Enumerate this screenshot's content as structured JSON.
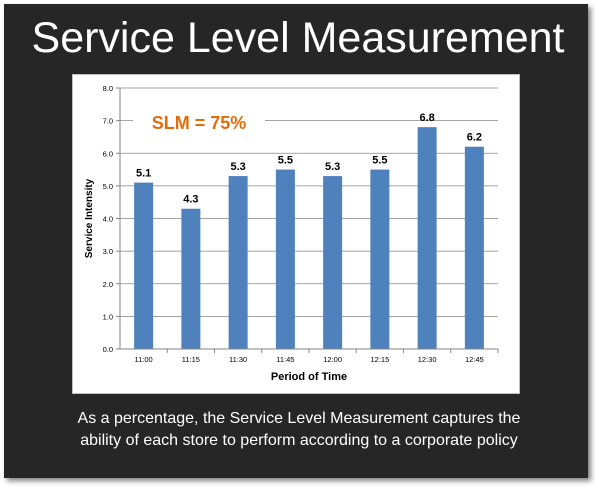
{
  "slide": {
    "title": "Service Level Measurement",
    "caption_line1": "As a percentage, the Service Level Measurement captures the",
    "caption_line2": "ability of each store to perform according to a corporate policy"
  },
  "chart_data": {
    "type": "bar",
    "categories": [
      "11:00",
      "11:15",
      "11:30",
      "11:45",
      "12:00",
      "12:15",
      "12:30",
      "12:45"
    ],
    "values": [
      5.1,
      4.3,
      5.3,
      5.5,
      5.3,
      5.5,
      6.8,
      6.2
    ],
    "data_labels": [
      "5.1",
      "4.3",
      "5.3",
      "5.5",
      "5.3",
      "5.5",
      "6.8",
      "6.2"
    ],
    "title": "",
    "xlabel": "Period of Time",
    "ylabel": "Service Intensity",
    "ylim": [
      0,
      8
    ],
    "yticks": [
      "0.0",
      "1.0",
      "2.0",
      "3.0",
      "4.0",
      "5.0",
      "6.0",
      "7.0",
      "8.0"
    ],
    "grid": true,
    "legend": false,
    "bar_color": "#4f81bd",
    "annotation": {
      "text": "SLM = 75%",
      "color": "#e36c0a"
    }
  }
}
